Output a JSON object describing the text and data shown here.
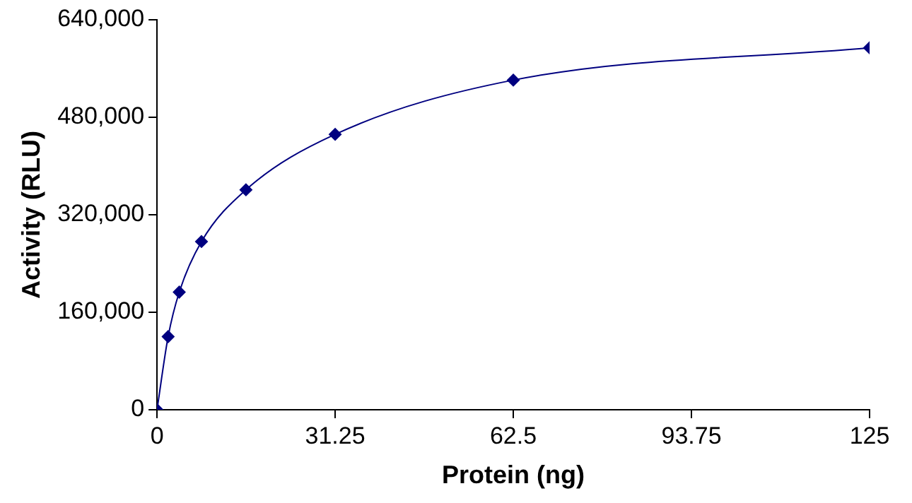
{
  "chart_data": {
    "type": "line",
    "xlabel": "Protein (ng)",
    "ylabel": "Activity (RLU)",
    "x": [
      0,
      1.95,
      3.9,
      7.8,
      15.6,
      31.25,
      62.5,
      125
    ],
    "series": [
      {
        "color": "#000080",
        "values": [
          0,
          120000,
          193000,
          276000,
          361000,
          452000,
          541000,
          594000
        ]
      }
    ],
    "xlim": [
      0,
      125
    ],
    "xticks": [
      0,
      31.25,
      62.5,
      93.75,
      125
    ],
    "ylim": [
      0,
      640000
    ],
    "yticks": [
      {
        "value": 0,
        "label": "0"
      },
      {
        "value": 160000,
        "label": "160,000"
      },
      {
        "value": 320000,
        "label": "320,000"
      },
      {
        "value": 480000,
        "label": "480,000"
      },
      {
        "value": 640000,
        "label": "640,000"
      }
    ],
    "grid": false,
    "legend": false,
    "marker": "diamond",
    "line_style": "solid"
  }
}
